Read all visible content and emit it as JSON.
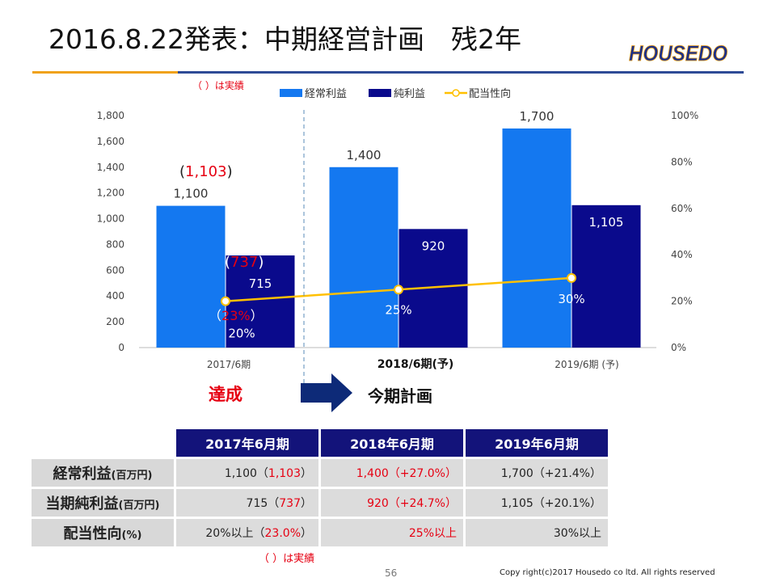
{
  "header": {
    "title": "2016.8.22発表：中期経営計画　残2年",
    "logo_text": "HOUSEDO"
  },
  "colors": {
    "ordinary_profit": "#1478f0",
    "net_profit": "#0a0a8c",
    "payout_line": "#ffc000",
    "accent_red": "#e60012",
    "header_navy": "#13137a"
  },
  "chart_data": {
    "type": "bar",
    "categories": [
      "2017/6期",
      "2018/6期(予)",
      "2019/6期 (予)"
    ],
    "series": [
      {
        "name": "経常利益",
        "values": [
          1100,
          1400,
          1700
        ],
        "labels": [
          "1,100",
          "1,400",
          "1,700"
        ]
      },
      {
        "name": "純利益",
        "values": [
          715,
          920,
          1105
        ],
        "labels": [
          "715",
          "920",
          "1,105"
        ]
      },
      {
        "name": "配当性向",
        "axis": "right",
        "type": "line",
        "values": [
          20,
          25,
          30
        ],
        "labels": [
          "20%",
          "25%",
          "30%"
        ]
      }
    ],
    "y_left": {
      "min": 0,
      "max": 1800,
      "ticks": [
        "0",
        "200",
        "400",
        "600",
        "800",
        "1,000",
        "1,200",
        "1,400",
        "1,600",
        "1,800"
      ]
    },
    "y_right": {
      "min": 0,
      "max": 100,
      "ticks": [
        "0%",
        "20%",
        "40%",
        "60%",
        "80%",
        "100%"
      ]
    },
    "actuals": {
      "ordinary_profit": "1,103",
      "net_profit": "737",
      "payout": "23%"
    },
    "legend_note": "（ ）は実績",
    "legend_position": "top"
  },
  "actual_labels": {
    "ordinary_open": "(",
    "ordinary_close": ")",
    "net_open": "(",
    "net_close": ")",
    "payout_open": "（",
    "payout_close": "）"
  },
  "annotations": {
    "achieved": "達成",
    "this_term": "今期計画"
  },
  "table": {
    "headers": [
      "2017年6月期",
      "2018年6月期",
      "2019年6月期"
    ],
    "rows": [
      {
        "label": "経常利益",
        "unit": "(百万円)",
        "cells": [
          [
            "1,100（",
            "1,103",
            "）"
          ],
          [
            "",
            "1,400（+27.0%）",
            ""
          ],
          [
            "1,700（+21.4%）",
            "",
            ""
          ]
        ]
      },
      {
        "label": "当期純利益",
        "unit": "(百万円)",
        "cells": [
          [
            "715（",
            "737",
            "）"
          ],
          [
            "",
            "920（+24.7%）",
            ""
          ],
          [
            "1,105（+20.1%）",
            "",
            ""
          ]
        ]
      },
      {
        "label": "配当性向",
        "unit": "(%)",
        "cells": [
          [
            "20%以上（",
            "23.0%",
            "）"
          ],
          [
            "",
            "25%以上",
            ""
          ],
          [
            "30%以上",
            "",
            ""
          ]
        ]
      }
    ],
    "note": "（ ）は実績"
  },
  "footer": {
    "page": "56",
    "copyright": "Copy right(c)2017 Housedo co ltd. All rights reserved"
  }
}
